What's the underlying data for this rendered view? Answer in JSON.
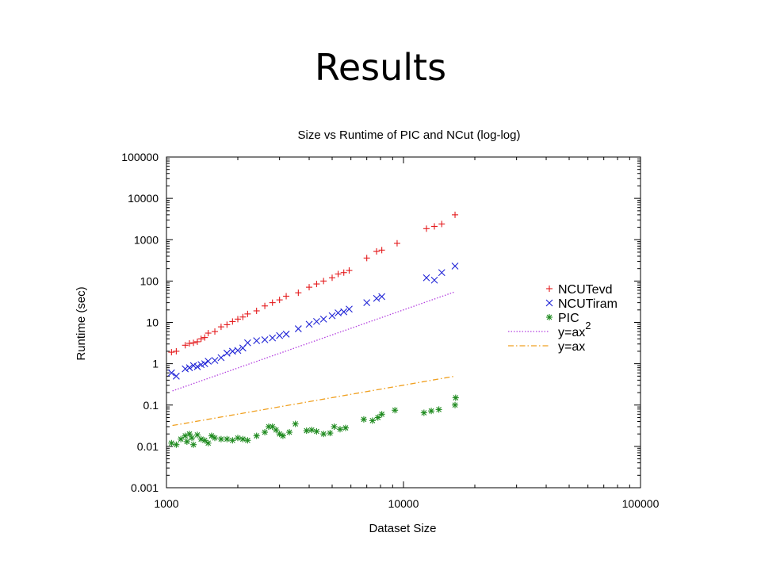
{
  "slide": {
    "title": "Results"
  },
  "chart_data": {
    "type": "scatter",
    "title": "Size vs Runtime of PIC and NCut (log-log)",
    "xlabel": "Dataset Size",
    "ylabel": "Runtime (sec)",
    "xscale": "log",
    "yscale": "log",
    "xlim": [
      1000,
      100000
    ],
    "ylim": [
      0.001,
      100000
    ],
    "xticks": [
      {
        "value": 1000,
        "label": "1000"
      },
      {
        "value": 10000,
        "label": "10000"
      },
      {
        "value": 100000,
        "label": "100000"
      }
    ],
    "yticks": [
      {
        "value": 0.001,
        "label": "0.001"
      },
      {
        "value": 0.01,
        "label": "0.01"
      },
      {
        "value": 0.1,
        "label": "0.1"
      },
      {
        "value": 1,
        "label": "1"
      },
      {
        "value": 10,
        "label": "10"
      },
      {
        "value": 100,
        "label": "100"
      },
      {
        "value": 1000,
        "label": "1000"
      },
      {
        "value": 10000,
        "label": "10000"
      },
      {
        "value": 100000,
        "label": "100000"
      }
    ],
    "grid": false,
    "legend_position": "right",
    "series": [
      {
        "name": "NCUTevd",
        "marker": "plus",
        "color": "#e41a1c",
        "x": [
          1050,
          1100,
          1200,
          1250,
          1300,
          1350,
          1400,
          1450,
          1500,
          1600,
          1700,
          1800,
          1900,
          2000,
          2100,
          2200,
          2400,
          2600,
          2800,
          3000,
          3200,
          3600,
          4000,
          4300,
          4600,
          5000,
          5300,
          5600,
          5900,
          7000,
          7700,
          8100,
          9400,
          12500,
          13500,
          14500,
          16500
        ],
        "y": [
          1.9,
          2.0,
          2.8,
          3.1,
          3.2,
          3.4,
          4.0,
          4.3,
          5.5,
          6.0,
          7.8,
          8.8,
          10.5,
          12,
          13.5,
          16,
          19,
          25,
          30,
          35,
          43,
          52,
          71,
          85,
          100,
          120,
          148,
          160,
          180,
          360,
          520,
          560,
          820,
          1850,
          2100,
          2400,
          4000
        ]
      },
      {
        "name": "NCUTiram",
        "marker": "cross",
        "color": "#1f23d6",
        "x": [
          1050,
          1100,
          1200,
          1250,
          1300,
          1350,
          1400,
          1450,
          1500,
          1600,
          1700,
          1800,
          1900,
          2000,
          2100,
          2200,
          2400,
          2600,
          2800,
          3000,
          3200,
          3600,
          4000,
          4300,
          4600,
          5000,
          5300,
          5600,
          5900,
          7000,
          7700,
          8100,
          12500,
          13500,
          14500,
          16500
        ],
        "y": [
          0.6,
          0.5,
          0.75,
          0.8,
          0.9,
          0.85,
          0.95,
          1.0,
          1.15,
          1.2,
          1.4,
          1.8,
          2.0,
          2.1,
          2.4,
          3.2,
          3.6,
          3.8,
          4.2,
          4.8,
          5.2,
          7.0,
          9.0,
          10.5,
          12,
          14.5,
          17,
          18,
          21,
          30,
          38,
          42,
          120,
          105,
          160,
          230
        ]
      },
      {
        "name": "PIC",
        "marker": "star",
        "color": "#1e8a1e",
        "x": [
          1050,
          1100,
          1150,
          1200,
          1220,
          1250,
          1280,
          1300,
          1350,
          1400,
          1450,
          1500,
          1550,
          1600,
          1700,
          1800,
          1900,
          2000,
          2100,
          2200,
          2400,
          2600,
          2700,
          2800,
          2900,
          3000,
          3100,
          3300,
          3500,
          3900,
          4100,
          4300,
          4600,
          4900,
          5100,
          5400,
          5700,
          6800,
          7400,
          7800,
          8100,
          9200,
          12200,
          13100,
          14100,
          16500,
          16600
        ],
        "y": [
          0.012,
          0.011,
          0.015,
          0.018,
          0.013,
          0.02,
          0.016,
          0.011,
          0.019,
          0.015,
          0.014,
          0.012,
          0.018,
          0.016,
          0.015,
          0.015,
          0.014,
          0.016,
          0.015,
          0.014,
          0.018,
          0.022,
          0.03,
          0.03,
          0.025,
          0.02,
          0.018,
          0.022,
          0.035,
          0.024,
          0.025,
          0.023,
          0.02,
          0.021,
          0.03,
          0.026,
          0.028,
          0.045,
          0.042,
          0.05,
          0.06,
          0.075,
          0.065,
          0.072,
          0.078,
          0.1,
          0.15
        ]
      },
      {
        "name": "y=ax2",
        "marker": "line-dotted",
        "color": "#b441e0",
        "x": [
          1060,
          16500
        ],
        "y": [
          0.22,
          55
        ]
      },
      {
        "name": "y=ax",
        "marker": "line-dashdot",
        "color": "#f0a020",
        "x": [
          1060,
          16500
        ],
        "y": [
          0.032,
          0.5
        ]
      }
    ],
    "legend": [
      {
        "label": "NCUTevd",
        "sup": ""
      },
      {
        "label": "NCUTiram",
        "sup": ""
      },
      {
        "label": "PIC",
        "sup": ""
      },
      {
        "label": "y=ax",
        "sup": "2"
      },
      {
        "label": "y=ax",
        "sup": ""
      }
    ]
  }
}
